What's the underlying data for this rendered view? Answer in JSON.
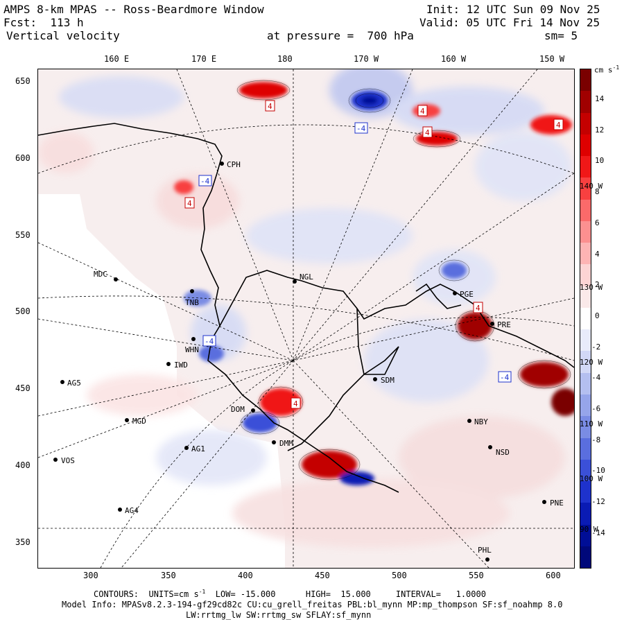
{
  "header": {
    "title": "AMPS 8-km MPAS -- Ross-Beardmore Window",
    "forecast": "Fcst:  113 h",
    "field": "Vertical velocity",
    "init": "Init: 12 UTC Sun 09 Nov 25",
    "valid": "Valid: 05 UTC Fri 14 Nov 25",
    "pressure": "at pressure =  700 hPa",
    "smoothing": "sm= 5"
  },
  "top_axis": [
    "160 E",
    "170 E",
    "180",
    "170 W",
    "160 W",
    "150 W"
  ],
  "left_axis": [
    "650",
    "600",
    "550",
    "500",
    "450",
    "400",
    "350"
  ],
  "bottom_axis": [
    "300",
    "350",
    "400",
    "450",
    "500",
    "550",
    "600"
  ],
  "colorbar": {
    "units": "cm s",
    "units_exp": "-1",
    "labels": [
      "14",
      "12",
      "10",
      "8",
      "6",
      "4",
      "2",
      "0",
      "-2",
      "-4",
      "-6",
      "-8",
      "-10",
      "-12",
      "-14"
    ],
    "colors": [
      "#7a0000",
      "#a00000",
      "#c40000",
      "#de0000",
      "#f01818",
      "#f84040",
      "#fb6a6a",
      "#fc9090",
      "#fdb4b4",
      "#fcd4d4",
      "#fae9e9",
      "#ffffff",
      "#e8ebfa",
      "#d2d8f6",
      "#b4bff0",
      "#96a5ea",
      "#7a8ce4",
      "#5a6ede",
      "#3b50d8",
      "#1e32cc",
      "#0a1bb4",
      "#000e96",
      "#00087a"
    ],
    "overlay": [
      "140 W",
      "130 W",
      "120 W",
      "110 W",
      "100 W",
      "90 W"
    ]
  },
  "stations": [
    {
      "id": "CPH"
    },
    {
      "id": "MDC"
    },
    {
      "id": "NGL"
    },
    {
      "id": "TNB"
    },
    {
      "id": "WHN"
    },
    {
      "id": "IWD"
    },
    {
      "id": "AG5"
    },
    {
      "id": "MGD"
    },
    {
      "id": "AG1"
    },
    {
      "id": "VOS"
    },
    {
      "id": "AG4"
    },
    {
      "id": "DOM"
    },
    {
      "id": "DMM"
    },
    {
      "id": "SDM"
    },
    {
      "id": "PGE"
    },
    {
      "id": "PRE"
    },
    {
      "id": "NBY"
    },
    {
      "id": "NSD"
    },
    {
      "id": "PNE"
    },
    {
      "id": "PHL"
    }
  ],
  "markers": [
    {
      "type": "high",
      "text": "4"
    },
    {
      "type": "high",
      "text": "4"
    },
    {
      "type": "high",
      "text": "4"
    },
    {
      "type": "high",
      "text": "4"
    },
    {
      "type": "high",
      "text": "4"
    },
    {
      "type": "high",
      "text": "4"
    },
    {
      "type": "high",
      "text": "4"
    },
    {
      "type": "low",
      "text": "-4"
    },
    {
      "type": "low",
      "text": "-4"
    },
    {
      "type": "low",
      "text": "-4"
    },
    {
      "type": "low",
      "text": "-4"
    }
  ],
  "footer": {
    "contours_prefix": "CONTOURS:  UNITS=cm s",
    "contours_exp": "-1",
    "contours_rest": "  LOW= -15.000      HIGH=  15.000     INTERVAL=   1.0000",
    "model_info": "Model Info: MPASv8.2.3-194-gf29cd82c CU:cu_grell_freitas PBL:bl_mynn MP:mp_thompson SF:sf_noahmp 8.0",
    "model_info2": "LW:rrtmg_lw SW:rrtmg_sw SFLAY:sf_mynn"
  }
}
